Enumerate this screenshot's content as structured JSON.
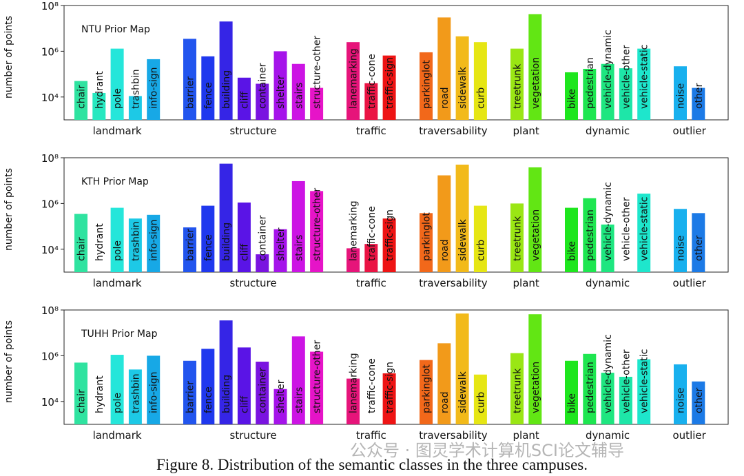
{
  "caption": "Figure 8. Distribution of the semantic classes in the three campuses.",
  "watermark": "公众号 · 图灵学术计算机SCI论文辅导",
  "chart_data": [
    {
      "type": "bar",
      "title": "NTU Prior Map",
      "ylabel": "number of points",
      "yscale": "log",
      "ylim": [
        1000,
        100000000
      ],
      "yticks": [
        "10⁴",
        "10⁶",
        "10⁸"
      ],
      "groups": [
        {
          "name": "landmark",
          "classes": [
            {
              "label": "chair",
              "value": 50000,
              "color": "#2fe3a0"
            },
            {
              "label": "hydrant",
              "value": 15000,
              "color": "#27e8c0"
            },
            {
              "label": "pole",
              "value": 1300000,
              "color": "#25e6da"
            },
            {
              "label": "trashbin",
              "value": 11000,
              "color": "#1dc9e6"
            },
            {
              "label": "info-sign",
              "value": 450000,
              "color": "#17a8e6"
            }
          ]
        },
        {
          "name": "structure",
          "classes": [
            {
              "label": "barrier",
              "value": 3500000,
              "color": "#2255ee"
            },
            {
              "label": "fence",
              "value": 600000,
              "color": "#1f38ee"
            },
            {
              "label": "building",
              "value": 20000000,
              "color": "#3525e6"
            },
            {
              "label": "cliff",
              "value": 70000,
              "color": "#5a14e6"
            },
            {
              "label": "container",
              "value": 38000,
              "color": "#7a14e0"
            },
            {
              "label": "shelter",
              "value": 1000000,
              "color": "#a514ea"
            },
            {
              "label": "stairs",
              "value": 280000,
              "color": "#cc14e4"
            },
            {
              "label": "structure-other",
              "value": 25000,
              "color": "#e614c8"
            }
          ]
        },
        {
          "name": "traffic",
          "classes": [
            {
              "label": "lanemarking",
              "value": 2500000,
              "color": "#e6147a"
            },
            {
              "label": "traffic-cone",
              "value": 40000,
              "color": "#ea1444"
            },
            {
              "label": "traffic-sign",
              "value": 650000,
              "color": "#ee1414"
            }
          ]
        },
        {
          "name": "traversability",
          "classes": [
            {
              "label": "parkinglot",
              "value": 900000,
              "color": "#f2681a"
            },
            {
              "label": "road",
              "value": 30000000,
              "color": "#f29a1a"
            },
            {
              "label": "sidewalk",
              "value": 4500000,
              "color": "#f2ba1a"
            },
            {
              "label": "curb",
              "value": 2500000,
              "color": "#e6e614"
            }
          ]
        },
        {
          "name": "plant",
          "classes": [
            {
              "label": "treetrunk",
              "value": 1300000,
              "color": "#9ae614"
            },
            {
              "label": "vegetation",
              "value": 42000000,
              "color": "#62e614"
            }
          ]
        },
        {
          "name": "dynamic",
          "classes": [
            {
              "label": "bike",
              "value": 120000,
              "color": "#1ee61e"
            },
            {
              "label": "pedestrian",
              "value": 170000,
              "color": "#1ee650"
            },
            {
              "label": "vehicle-dynamic",
              "value": 280000,
              "color": "#1ee680"
            },
            {
              "label": "vehicle-other",
              "value": 180000,
              "color": "#1ee6a8"
            },
            {
              "label": "vehicle-static",
              "value": 1300000,
              "color": "#1ee6cc"
            }
          ]
        },
        {
          "name": "outlier",
          "classes": [
            {
              "label": "noise",
              "value": 220000,
              "color": "#18b0ee"
            },
            {
              "label": "other",
              "value": 25000,
              "color": "#1c7ae6"
            }
          ]
        }
      ]
    },
    {
      "type": "bar",
      "title": "KTH Prior Map",
      "ylabel": "number of points",
      "yscale": "log",
      "ylim": [
        1000,
        100000000
      ],
      "yticks": [
        "10⁴",
        "10⁶",
        "10⁸"
      ],
      "groups": [
        {
          "name": "landmark",
          "classes": [
            {
              "label": "chair",
              "value": 350000,
              "color": "#2fe3a0"
            },
            {
              "label": "hydrant",
              "value": 0,
              "color": "#27e8c0"
            },
            {
              "label": "pole",
              "value": 650000,
              "color": "#25e6da"
            },
            {
              "label": "trashbin",
              "value": 220000,
              "color": "#1dc9e6"
            },
            {
              "label": "info-sign",
              "value": 320000,
              "color": "#17a8e6"
            }
          ]
        },
        {
          "name": "structure",
          "classes": [
            {
              "label": "barrier",
              "value": 90000,
              "color": "#2255ee"
            },
            {
              "label": "fence",
              "value": 800000,
              "color": "#1f38ee"
            },
            {
              "label": "building",
              "value": 55000000,
              "color": "#3525e6"
            },
            {
              "label": "cliff",
              "value": 1100000,
              "color": "#5a14e6"
            },
            {
              "label": "container",
              "value": 6000,
              "color": "#7a14e0"
            },
            {
              "label": "shelter",
              "value": 75000,
              "color": "#a514ea"
            },
            {
              "label": "stairs",
              "value": 9500000,
              "color": "#cc14e4"
            },
            {
              "label": "structure-other",
              "value": 3500000,
              "color": "#e614c8"
            }
          ]
        },
        {
          "name": "traffic",
          "classes": [
            {
              "label": "lanemarking",
              "value": 11000,
              "color": "#e6147a"
            },
            {
              "label": "traffic-cone",
              "value": 17000,
              "color": "#ea1444"
            },
            {
              "label": "traffic-sign",
              "value": 220000,
              "color": "#ee1414"
            }
          ]
        },
        {
          "name": "traversability",
          "classes": [
            {
              "label": "parkinglot",
              "value": 380000,
              "color": "#f2681a"
            },
            {
              "label": "road",
              "value": 17000000,
              "color": "#f29a1a"
            },
            {
              "label": "sidewalk",
              "value": 50000000,
              "color": "#f2ba1a"
            },
            {
              "label": "curb",
              "value": 800000,
              "color": "#e6e614"
            }
          ]
        },
        {
          "name": "plant",
          "classes": [
            {
              "label": "treetrunk",
              "value": 1000000,
              "color": "#9ae614"
            },
            {
              "label": "vegetation",
              "value": 38000000,
              "color": "#62e614"
            }
          ]
        },
        {
          "name": "dynamic",
          "classes": [
            {
              "label": "bike",
              "value": 650000,
              "color": "#1ee61e"
            },
            {
              "label": "pedestrian",
              "value": 1700000,
              "color": "#1ee650"
            },
            {
              "label": "vehicle-dynamic",
              "value": 120000,
              "color": "#1ee680"
            },
            {
              "label": "vehicle-other",
              "value": 0,
              "color": "#1ee6a8"
            },
            {
              "label": "vehicle-static",
              "value": 2700000,
              "color": "#1ee6cc"
            }
          ]
        },
        {
          "name": "outlier",
          "classes": [
            {
              "label": "noise",
              "value": 580000,
              "color": "#18b0ee"
            },
            {
              "label": "other",
              "value": 380000,
              "color": "#1c7ae6"
            }
          ]
        }
      ]
    },
    {
      "type": "bar",
      "title": "TUHH Prior Map",
      "ylabel": "number of points",
      "yscale": "log",
      "ylim": [
        1000,
        100000000
      ],
      "yticks": [
        "10⁴",
        "10⁶",
        "10⁸"
      ],
      "groups": [
        {
          "name": "landmark",
          "classes": [
            {
              "label": "chair",
              "value": 500000,
              "color": "#2fe3a0"
            },
            {
              "label": "hydrant",
              "value": 0,
              "color": "#27e8c0"
            },
            {
              "label": "pole",
              "value": 1100000,
              "color": "#25e6da"
            },
            {
              "label": "trashbin",
              "value": 250000,
              "color": "#1dc9e6"
            },
            {
              "label": "info-sign",
              "value": 1000000,
              "color": "#17a8e6"
            }
          ]
        },
        {
          "name": "structure",
          "classes": [
            {
              "label": "barrier",
              "value": 600000,
              "color": "#2255ee"
            },
            {
              "label": "fence",
              "value": 2000000,
              "color": "#1f38ee"
            },
            {
              "label": "building",
              "value": 35000000,
              "color": "#3525e6"
            },
            {
              "label": "cliff",
              "value": 2300000,
              "color": "#5a14e6"
            },
            {
              "label": "container",
              "value": 550000,
              "color": "#7a14e0"
            },
            {
              "label": "shelter",
              "value": 35000,
              "color": "#a514ea"
            },
            {
              "label": "stairs",
              "value": 7000000,
              "color": "#cc14e4"
            },
            {
              "label": "structure-other",
              "value": 1500000,
              "color": "#e614c8"
            }
          ]
        },
        {
          "name": "traffic",
          "classes": [
            {
              "label": "lanemarking",
              "value": 100000,
              "color": "#e6147a"
            },
            {
              "label": "traffic-cone",
              "value": 0,
              "color": "#ea1444"
            },
            {
              "label": "traffic-sign",
              "value": 170000,
              "color": "#ee1414"
            }
          ]
        },
        {
          "name": "traversability",
          "classes": [
            {
              "label": "parkinglot",
              "value": 650000,
              "color": "#f2681a"
            },
            {
              "label": "road",
              "value": 3500000,
              "color": "#f29a1a"
            },
            {
              "label": "sidewalk",
              "value": 70000000,
              "color": "#f2ba1a"
            },
            {
              "label": "curb",
              "value": 150000,
              "color": "#e6e614"
            }
          ]
        },
        {
          "name": "plant",
          "classes": [
            {
              "label": "treetrunk",
              "value": 1300000,
              "color": "#9ae614"
            },
            {
              "label": "vegetation",
              "value": 65000000,
              "color": "#62e614"
            }
          ]
        },
        {
          "name": "dynamic",
          "classes": [
            {
              "label": "bike",
              "value": 600000,
              "color": "#1ee61e"
            },
            {
              "label": "pedestrian",
              "value": 1200000,
              "color": "#1ee650"
            },
            {
              "label": "vehicle-dynamic",
              "value": 180000,
              "color": "#1ee680"
            },
            {
              "label": "vehicle-other",
              "value": 120000,
              "color": "#1ee6a8"
            },
            {
              "label": "vehicle-static",
              "value": 700000,
              "color": "#1ee6cc"
            }
          ]
        },
        {
          "name": "outlier",
          "classes": [
            {
              "label": "noise",
              "value": 420000,
              "color": "#18b0ee"
            },
            {
              "label": "other",
              "value": 75000,
              "color": "#1c7ae6"
            }
          ]
        }
      ]
    }
  ]
}
